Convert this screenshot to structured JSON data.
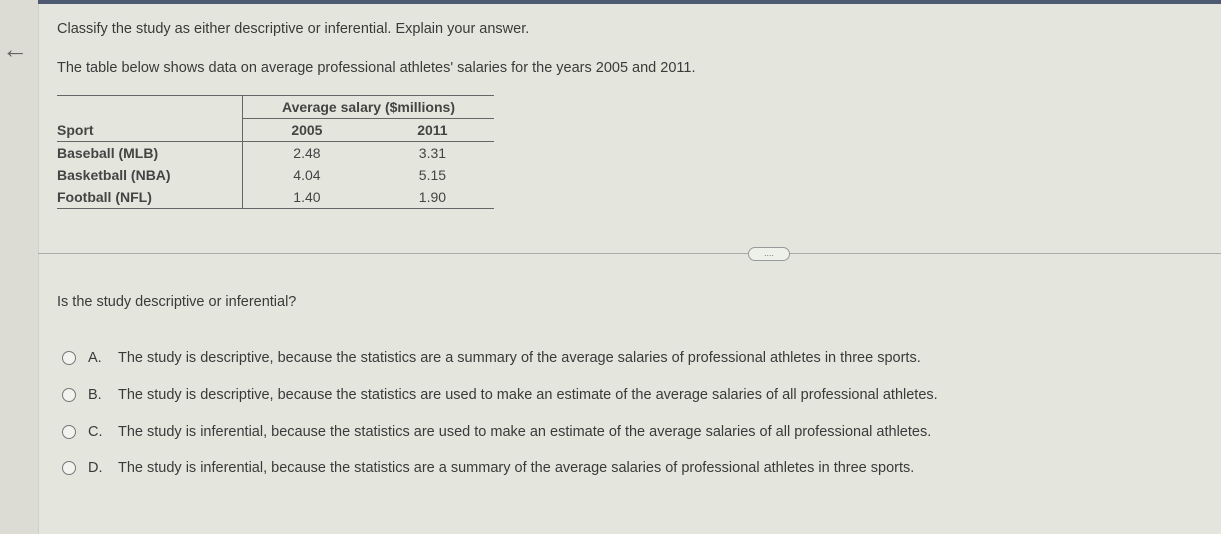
{
  "instruction": "Classify the study as either descriptive or inferential. Explain your answer.",
  "intro": "The table below shows data on average professional athletes' salaries for the years 2005 and 2011.",
  "table": {
    "group_header": "Average salary ($millions)",
    "col_sport": "Sport",
    "years": [
      "2005",
      "2011"
    ],
    "rows": [
      {
        "sport": "Baseball (MLB)",
        "v2005": "2.48",
        "v2011": "3.31"
      },
      {
        "sport": "Basketball (NBA)",
        "v2005": "4.04",
        "v2011": "5.15"
      },
      {
        "sport": "Football (NFL)",
        "v2005": "1.40",
        "v2011": "1.90"
      }
    ]
  },
  "more_label": "....",
  "question": "Is the study descriptive or inferential?",
  "options": [
    {
      "letter": "A.",
      "text": "The study is descriptive, because the statistics are a summary of the average salaries of professional athletes in three sports."
    },
    {
      "letter": "B.",
      "text": "The study is descriptive, because the statistics are used to make an estimate of the average salaries of all professional athletes."
    },
    {
      "letter": "C.",
      "text": "The study is inferential, because the statistics are used to make an estimate of the average salaries of all professional athletes."
    },
    {
      "letter": "D.",
      "text": "The study is inferential, because the statistics are a summary of the average salaries of professional athletes in three sports."
    }
  ]
}
